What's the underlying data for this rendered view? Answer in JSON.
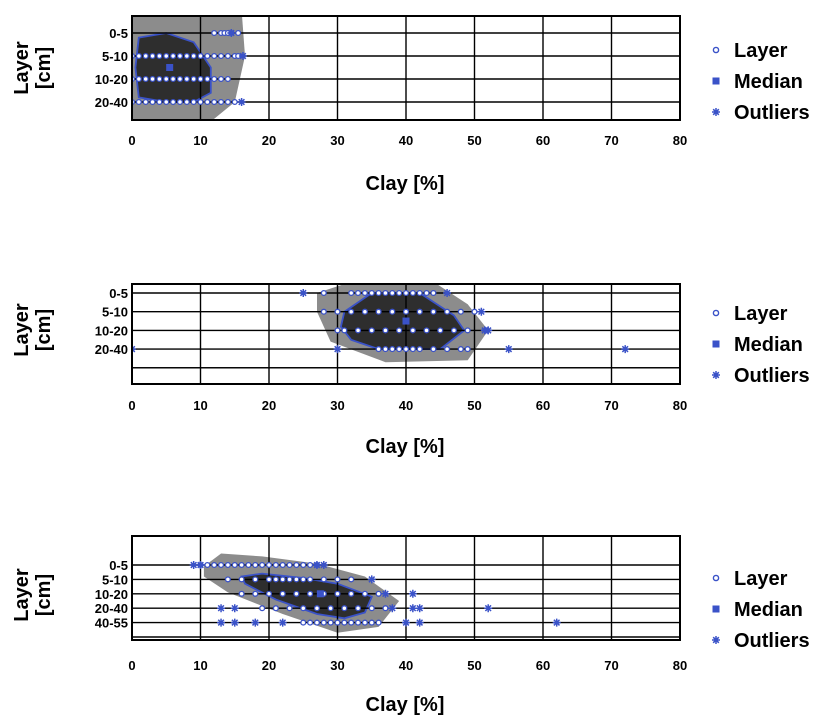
{
  "chart_data": [
    {
      "type": "bagplot",
      "xlabel": "Clay [%]",
      "ylabel": [
        "Layer",
        "[cm]"
      ],
      "xlim": [
        0,
        80
      ],
      "xticks": [
        0,
        10,
        20,
        30,
        40,
        50,
        60,
        70,
        80
      ],
      "layers": [
        "0-5",
        "5-10",
        "10-20",
        "20-40"
      ],
      "grid": true,
      "legend_position": "right",
      "legend": [
        "Layer",
        "Median",
        "Outliers"
      ],
      "median": [
        5.5,
        1.5
      ],
      "bag": [
        [
          1,
          0.2
        ],
        [
          5,
          0
        ],
        [
          9,
          0.4
        ],
        [
          11.5,
          1.5
        ],
        [
          11.5,
          2.6
        ],
        [
          9,
          3
        ],
        [
          5,
          3
        ],
        [
          1,
          2.8
        ],
        [
          0.5,
          1.5
        ]
      ],
      "fence": [
        [
          0,
          -1
        ],
        [
          16,
          -1
        ],
        [
          16.5,
          1
        ],
        [
          15,
          3
        ],
        [
          8,
          4.7
        ],
        [
          0,
          4.7
        ]
      ],
      "layer_points": [
        [
          0,
          [
            12,
            13,
            13.5,
            14,
            14.5,
            15.5
          ]
        ],
        [
          1,
          [
            0,
            1,
            2,
            3,
            4,
            5,
            6,
            7,
            8,
            9,
            10,
            11,
            12,
            13,
            14,
            15,
            15.5
          ]
        ],
        [
          2,
          [
            0,
            1,
            2,
            3,
            4,
            5,
            6,
            7,
            8,
            9,
            10,
            11,
            12,
            13,
            14
          ]
        ],
        [
          3,
          [
            0,
            1,
            2,
            3,
            4,
            5,
            6,
            7,
            8,
            9,
            10,
            11,
            12,
            13,
            14,
            15
          ]
        ]
      ],
      "outliers": [
        [
          0,
          14.5
        ],
        [
          1,
          16.2
        ],
        [
          3,
          16
        ]
      ]
    },
    {
      "type": "bagplot",
      "xlabel": "Clay [%]",
      "ylabel": [
        "Layer",
        "[cm]"
      ],
      "xlim": [
        0,
        80
      ],
      "xticks": [
        0,
        10,
        20,
        30,
        40,
        50,
        60,
        70,
        80
      ],
      "layers": [
        "0-5",
        "5-10",
        "10-20",
        "20-40"
      ],
      "grid": true,
      "legend_position": "right",
      "legend": [
        "Layer",
        "Median",
        "Outliers"
      ],
      "median": [
        40,
        1.5
      ],
      "bag": [
        [
          31,
          1
        ],
        [
          35,
          0
        ],
        [
          42,
          0
        ],
        [
          47,
          1.2
        ],
        [
          48.5,
          2
        ],
        [
          45,
          3
        ],
        [
          36,
          3
        ],
        [
          32,
          2.5
        ],
        [
          30.5,
          1.8
        ]
      ],
      "fence": [
        [
          27,
          0
        ],
        [
          32,
          -0.6
        ],
        [
          44,
          -0.6
        ],
        [
          49,
          0.6
        ],
        [
          52,
          2
        ],
        [
          49,
          3.6
        ],
        [
          37,
          3.7
        ],
        [
          29,
          2.6
        ],
        [
          27,
          1
        ]
      ],
      "layer_points": [
        [
          0,
          [
            28,
            32,
            33,
            34,
            35,
            36,
            37,
            38,
            39,
            40,
            41,
            42,
            43,
            44
          ]
        ],
        [
          1,
          [
            28,
            30,
            32,
            34,
            36,
            38,
            40,
            42,
            44,
            46,
            48,
            50
          ]
        ],
        [
          2,
          [
            30,
            31,
            33,
            35,
            37,
            39,
            41,
            43,
            45,
            47,
            49
          ]
        ],
        [
          3,
          [
            36,
            37,
            38,
            39,
            40,
            41,
            42,
            44,
            46,
            48,
            49
          ]
        ]
      ],
      "outliers": [
        [
          0,
          25
        ],
        [
          0,
          46
        ],
        [
          1,
          51
        ],
        [
          2,
          52
        ],
        [
          2,
          51.5
        ],
        [
          3,
          0
        ],
        [
          3,
          30
        ],
        [
          3,
          55
        ],
        [
          3,
          72
        ]
      ]
    },
    {
      "type": "bagplot",
      "xlabel": "Clay [%]",
      "ylabel": [
        "Layer",
        "[cm]"
      ],
      "xlim": [
        0,
        80
      ],
      "xticks": [
        0,
        10,
        20,
        30,
        40,
        50,
        60,
        70,
        80
      ],
      "layers": [
        "0-5",
        "5-10",
        "10-20",
        "20-40",
        "40-55"
      ],
      "grid": true,
      "legend_position": "right",
      "legend": [
        "Layer",
        "Median",
        "Outliers"
      ],
      "median": [
        27.5,
        2
      ],
      "bag": [
        [
          16,
          0.8
        ],
        [
          19,
          0.6
        ],
        [
          25,
          0.9
        ],
        [
          30,
          1.3
        ],
        [
          35,
          2.2
        ],
        [
          34,
          3.3
        ],
        [
          31,
          3.7
        ],
        [
          27,
          3.4
        ],
        [
          21,
          2.4
        ],
        [
          16.5,
          1.3
        ]
      ],
      "fence": [
        [
          10.5,
          0.1
        ],
        [
          13,
          -0.8
        ],
        [
          19,
          -0.6
        ],
        [
          27,
          -0.1
        ],
        [
          34,
          0.8
        ],
        [
          39,
          2.5
        ],
        [
          36,
          4.3
        ],
        [
          30,
          4.7
        ],
        [
          22,
          3.4
        ],
        [
          14,
          1.9
        ],
        [
          10.5,
          0.8
        ]
      ],
      "layer_points": [
        [
          0,
          [
            10,
            11,
            12,
            13,
            14,
            15,
            16,
            17,
            18,
            19,
            20,
            21,
            22,
            23,
            24,
            25,
            26,
            27
          ]
        ],
        [
          1,
          [
            14,
            16,
            18,
            20,
            21,
            22,
            23,
            24,
            25,
            26,
            28,
            30,
            32
          ]
        ],
        [
          2,
          [
            16,
            18,
            20,
            22,
            24,
            26,
            28,
            30,
            32,
            34,
            36
          ]
        ],
        [
          3,
          [
            19,
            21,
            23,
            25,
            27,
            29,
            31,
            33,
            35,
            37
          ]
        ],
        [
          4,
          [
            25,
            26,
            27,
            28,
            29,
            30,
            31,
            32,
            33,
            34,
            35,
            36
          ]
        ]
      ],
      "outliers": [
        [
          0,
          9
        ],
        [
          0,
          10
        ],
        [
          0,
          27
        ],
        [
          0,
          28
        ],
        [
          1,
          35
        ],
        [
          2,
          37
        ],
        [
          2,
          41
        ],
        [
          3,
          13
        ],
        [
          3,
          15
        ],
        [
          3,
          38
        ],
        [
          3,
          41
        ],
        [
          3,
          42
        ],
        [
          3,
          52
        ],
        [
          4,
          13
        ],
        [
          4,
          15
        ],
        [
          4,
          18
        ],
        [
          4,
          22
        ],
        [
          4,
          40
        ],
        [
          4,
          42
        ],
        [
          4,
          62
        ]
      ]
    }
  ]
}
